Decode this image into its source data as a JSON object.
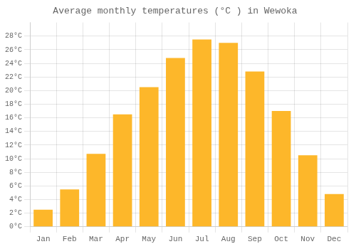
{
  "chart_data": {
    "type": "bar",
    "title": "Average monthly temperatures (°C ) in Wewoka",
    "categories": [
      "Jan",
      "Feb",
      "Mar",
      "Apr",
      "May",
      "Jun",
      "Jul",
      "Aug",
      "Sep",
      "Oct",
      "Nov",
      "Dec"
    ],
    "values": [
      2.5,
      5.5,
      10.7,
      16.5,
      20.5,
      24.8,
      27.5,
      27.0,
      22.8,
      17.0,
      10.5,
      4.8
    ],
    "color": "#FDB72A",
    "ylim": [
      0,
      30
    ],
    "yticks": [
      {
        "value": 0,
        "label": "0°C"
      },
      {
        "value": 2,
        "label": "2°C"
      },
      {
        "value": 4,
        "label": "4°C"
      },
      {
        "value": 6,
        "label": "6°C"
      },
      {
        "value": 8,
        "label": "8°C"
      },
      {
        "value": 10,
        "label": "10°C"
      },
      {
        "value": 12,
        "label": "12°C"
      },
      {
        "value": 14,
        "label": "14°C"
      },
      {
        "value": 16,
        "label": "16°C"
      },
      {
        "value": 18,
        "label": "18°C"
      },
      {
        "value": 20,
        "label": "20°C"
      },
      {
        "value": 22,
        "label": "22°C"
      },
      {
        "value": 24,
        "label": "24°C"
      },
      {
        "value": 26,
        "label": "26°C"
      },
      {
        "value": 28,
        "label": "28°C"
      }
    ],
    "grid": true
  }
}
